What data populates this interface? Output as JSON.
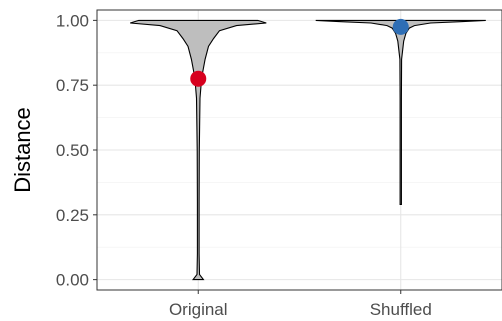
{
  "chart_data": {
    "type": "violin",
    "title": "",
    "xlabel": "",
    "ylabel": "Distance",
    "ylim": [
      -0.04,
      1.04
    ],
    "yticks": [
      0.0,
      0.25,
      0.5,
      0.75,
      1.0
    ],
    "ytick_labels": [
      "0.00",
      "0.25",
      "0.50",
      "0.75",
      "1.00"
    ],
    "grid": true,
    "legend": "none",
    "categories": [
      "Original",
      "Shuffled"
    ],
    "series": [
      {
        "category": "Original",
        "mean": 0.775,
        "mean_color": "#d7001e",
        "min": 0.0,
        "max": 1.0,
        "density_profile": [
          [
            0.0,
            0.06
          ],
          [
            0.02,
            0.015
          ],
          [
            0.1,
            0.01
          ],
          [
            0.3,
            0.01
          ],
          [
            0.5,
            0.012
          ],
          [
            0.7,
            0.02
          ],
          [
            0.78,
            0.04
          ],
          [
            0.85,
            0.08
          ],
          [
            0.9,
            0.12
          ],
          [
            0.93,
            0.18
          ],
          [
            0.96,
            0.25
          ],
          [
            0.98,
            0.45
          ],
          [
            0.99,
            0.8
          ],
          [
            1.0,
            0.7
          ]
        ]
      },
      {
        "category": "Shuffled",
        "mean": 0.975,
        "mean_color": "#2e6eb5",
        "min": 0.29,
        "max": 1.0,
        "density_profile": [
          [
            0.29,
            0.005
          ],
          [
            0.5,
            0.005
          ],
          [
            0.7,
            0.006
          ],
          [
            0.85,
            0.01
          ],
          [
            0.88,
            0.02
          ],
          [
            0.92,
            0.035
          ],
          [
            0.95,
            0.06
          ],
          [
            0.97,
            0.1
          ],
          [
            0.98,
            0.16
          ],
          [
            0.99,
            0.35
          ],
          [
            0.995,
            0.7
          ],
          [
            1.0,
            1.0
          ]
        ]
      }
    ],
    "violin_fill": "#bebebe",
    "violin_stroke": "#000000"
  }
}
